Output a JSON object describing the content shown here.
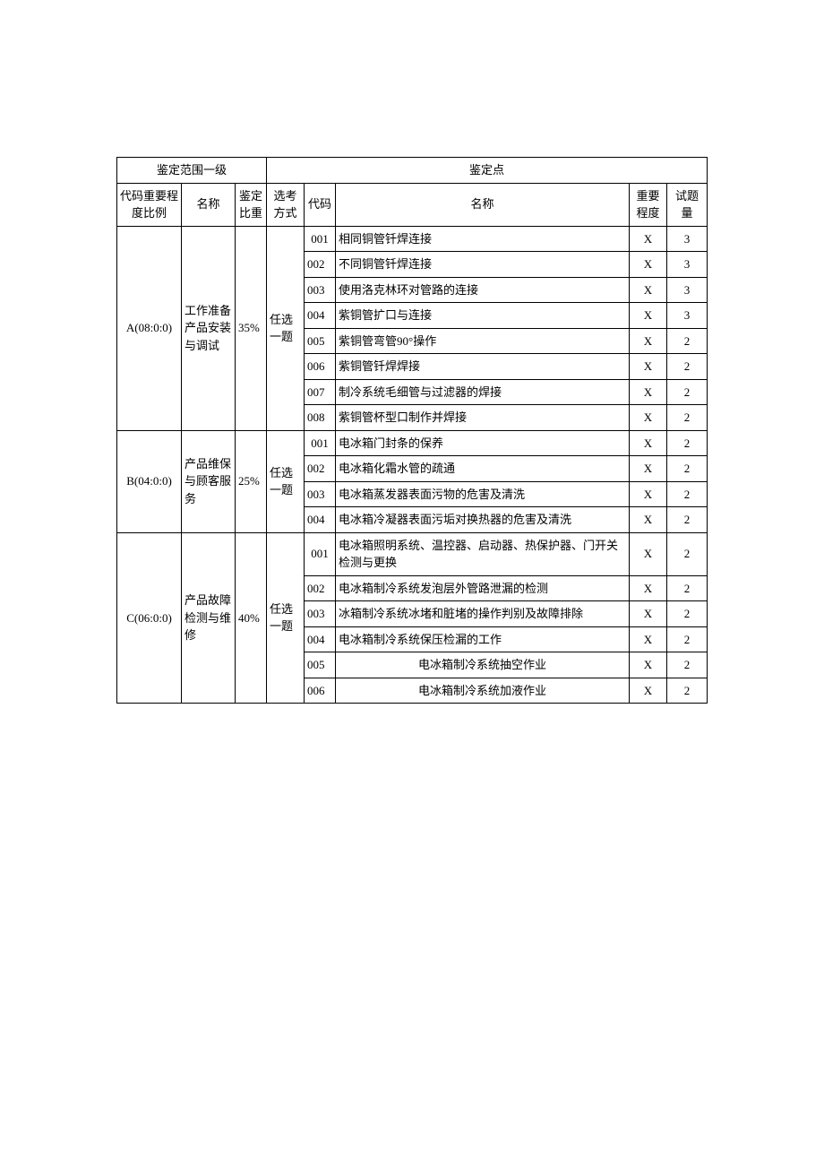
{
  "headers": {
    "group1": "鉴定范围一级",
    "group2": "鉴定点",
    "code_ratio": "代码重要程度比例",
    "name1": "名称",
    "weight": "鉴定比重",
    "method": "选考方式",
    "code2": "代码",
    "name2": "名称",
    "importance": "重要程度",
    "qty": "试题量"
  },
  "sections": [
    {
      "code": "A(08:0:0)",
      "name": "工作准备产品安装与调试",
      "weight": "35%",
      "method": "任选一题",
      "rows": [
        {
          "code": "001",
          "name": "相同铜管钎焊连接",
          "imp": "X",
          "qty": "3",
          "align": "left"
        },
        {
          "code": "002",
          "name": "不同铜管钎焊连接",
          "imp": "X",
          "qty": "3",
          "align": "left"
        },
        {
          "code": "003",
          "name": "使用洛克林环对管路的连接",
          "imp": "X",
          "qty": "3",
          "align": "left"
        },
        {
          "code": "004",
          "name": "紫铜管扩口与连接",
          "imp": "X",
          "qty": "3",
          "align": "left"
        },
        {
          "code": "005",
          "name": "紫铜管弯管90°操作",
          "imp": "X",
          "qty": "2",
          "align": "left"
        },
        {
          "code": "006",
          "name": "紫铜管钎焊焊接",
          "imp": "X",
          "qty": "2",
          "align": "left"
        },
        {
          "code": "007",
          "name": "制冷系统毛细管与过滤器的焊接",
          "imp": "X",
          "qty": "2",
          "align": "left"
        },
        {
          "code": "008",
          "name": "紫铜管杯型口制作并焊接",
          "imp": "X",
          "qty": "2",
          "align": "left"
        }
      ]
    },
    {
      "code": "B(04:0:0)",
      "name": "产品维保与顾客服务",
      "weight": "25%",
      "method": "任选一题",
      "rows": [
        {
          "code": "001",
          "name": "电冰箱门封条的保养",
          "imp": "X",
          "qty": "2",
          "align": "left"
        },
        {
          "code": "002",
          "name": "电冰箱化霜水管的疏通",
          "imp": "X",
          "qty": "2",
          "align": "left"
        },
        {
          "code": "003",
          "name": "电冰箱蒸发器表面污物的危害及清洗",
          "imp": "X",
          "qty": "2",
          "align": "left"
        },
        {
          "code": "004",
          "name": "电冰箱冷凝器表面污垢对换热器的危害及清洗",
          "imp": "X",
          "qty": "2",
          "align": "left"
        }
      ]
    },
    {
      "code": "C(06:0:0)",
      "name": "产品故障检测与维修",
      "weight": "40%",
      "method": "任选一题",
      "rows": [
        {
          "code": "001",
          "name": "电冰箱照明系统、温控器、启动器、热保护器、门开关检测与更换",
          "imp": "X",
          "qty": "2",
          "align": "left"
        },
        {
          "code": "002",
          "name": "电冰箱制冷系统发泡层外管路泄漏的检测",
          "imp": "X",
          "qty": "2",
          "align": "left"
        },
        {
          "code": "003",
          "name": "冰箱制冷系统冰堵和脏堵的操作判别及故障排除",
          "imp": "X",
          "qty": "2",
          "align": "left"
        },
        {
          "code": "004",
          "name": "电冰箱制冷系统保压检漏的工作",
          "imp": "X",
          "qty": "2",
          "align": "left"
        },
        {
          "code": "005",
          "name": "电冰箱制冷系统抽空作业",
          "imp": "X",
          "qty": "2",
          "align": "center"
        },
        {
          "code": "006",
          "name": "电冰箱制冷系统加液作业",
          "imp": "X",
          "qty": "2",
          "align": "center"
        }
      ]
    }
  ]
}
